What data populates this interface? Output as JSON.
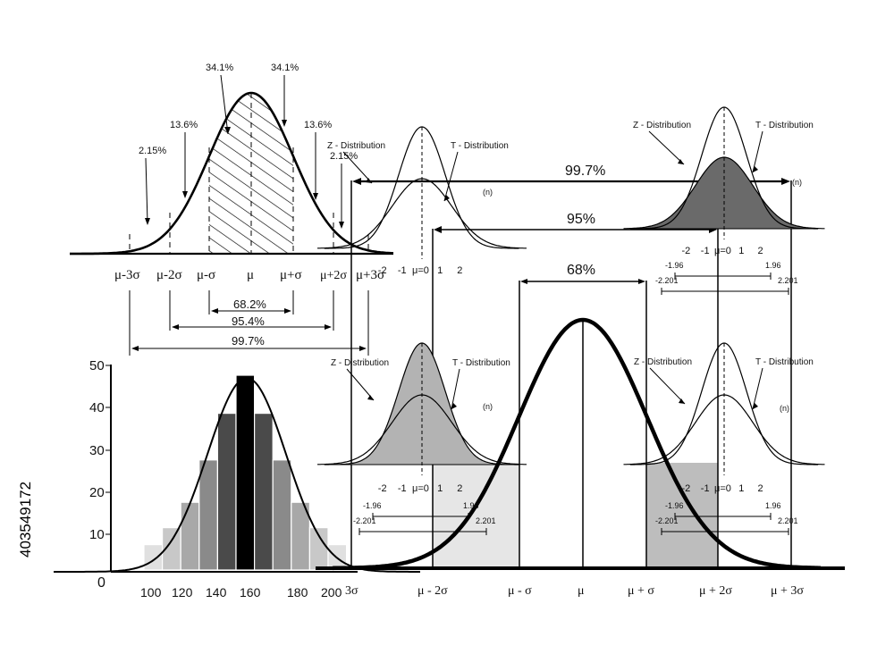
{
  "colors": {
    "ink": "#000000",
    "light_fill": "#e6e6e6",
    "mid_fill": "#b3b3b3",
    "dark_fill": "#6a6a6a"
  },
  "normal_curve": {
    "percent_labels": [
      "34.1%",
      "34.1%",
      "13.6%",
      "13.6%",
      "2.15%",
      "2.15%"
    ],
    "axis_labels": [
      "μ-3σ",
      "μ-2σ",
      "μ-σ",
      "μ",
      "μ+σ",
      "μ+2σ",
      "μ+3σ"
    ],
    "ranges": [
      "68.2%",
      "95.4%",
      "99.7%"
    ]
  },
  "histogram": {
    "y_ticks": [
      "50",
      "40",
      "30",
      "20",
      "10"
    ],
    "origin": "0",
    "x_ticks": [
      "100",
      "120",
      "140",
      "160",
      "180",
      "200"
    ],
    "bar_heights": [
      6,
      10,
      16,
      26,
      37,
      46,
      37,
      26,
      16,
      10,
      6
    ]
  },
  "zt_panels": {
    "z_label": "Z - Distribution",
    "t_label": "T - Distribution",
    "n_label": "(n)",
    "axis_ticks": [
      "-2",
      "-1",
      "μ=0",
      "1",
      "2"
    ],
    "crit_z_low": "-1.96",
    "crit_z_high": "1.96",
    "crit_t_low": "-2.201",
    "crit_t_high": "2.201"
  },
  "top_left_panel_ticks": [
    "-2",
    "-1",
    "μ=0",
    "1",
    "2"
  ],
  "main_curve": {
    "ranges": [
      "99.7%",
      "95%",
      "68%"
    ],
    "axis_labels": [
      "3σ",
      "μ - 2σ",
      "μ - σ",
      "μ",
      "μ + σ",
      "μ + 2σ",
      "μ + 3σ"
    ]
  },
  "watermark": "403549172"
}
